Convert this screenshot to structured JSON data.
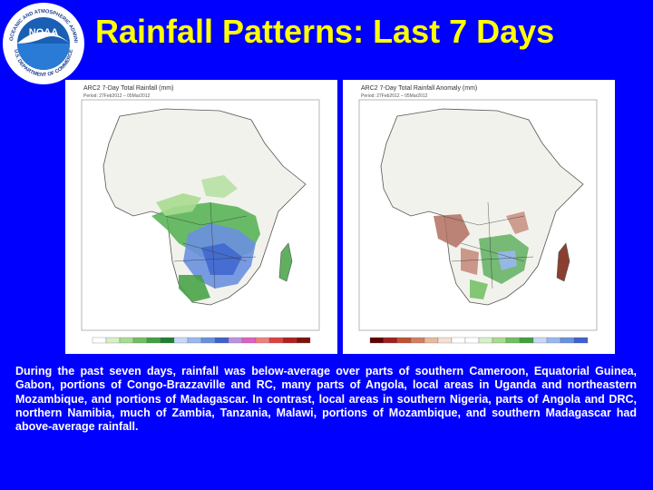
{
  "slide": {
    "title": "Rainfall Patterns: Last 7 Days",
    "background_color": "#0000ff",
    "title_color": "#ffff00"
  },
  "logo": {
    "text_top": "NATIONAL OCEANIC AND ATMOSPHERIC ADMINISTRATION",
    "text_bottom": "U.S. DEPARTMENT OF COMMERCE",
    "center_label": "NOAA"
  },
  "maps": [
    {
      "title": "ARC2 7-Day Total Rainfall (mm)",
      "period": "Period: 27Feb2012 – 05Mar2012",
      "legend_colors": [
        "#ffffff",
        "#d8f0c8",
        "#a8dc90",
        "#70c060",
        "#40a040",
        "#208030",
        "#c8d8f8",
        "#98b8f0",
        "#6890e0",
        "#4060d0",
        "#c090e0",
        "#e060c0",
        "#f08080",
        "#e04040",
        "#b02020",
        "#801010"
      ]
    },
    {
      "title": "ARC2 7-Day Total Rainfall Anomaly (mm)",
      "period": "Period: 27Feb2012 – 05Mar2012",
      "legend_colors": [
        "#600000",
        "#a02020",
        "#c05030",
        "#d08060",
        "#e8b8a0",
        "#f5e0d5",
        "#ffffff",
        "#ffffff",
        "#d8f0c8",
        "#a8dc90",
        "#70c060",
        "#40a040",
        "#c8d8f8",
        "#98b8f0",
        "#6890e0",
        "#4060d0"
      ]
    }
  ],
  "caption": "During the past seven days, rainfall was below-average over parts of southern Cameroon, Equatorial Guinea, Gabon, portions of Congo-Brazzaville and RC, many parts of Angola, local areas in Uganda and northeastern Mozambique, and portions of Madagascar. In contrast, local areas in southern Nigeria, parts of Angola and DRC, northern Namibia, much of Zambia, Tanzania, Malawi, portions of Mozambique, and southern Madagascar had above-average rainfall."
}
